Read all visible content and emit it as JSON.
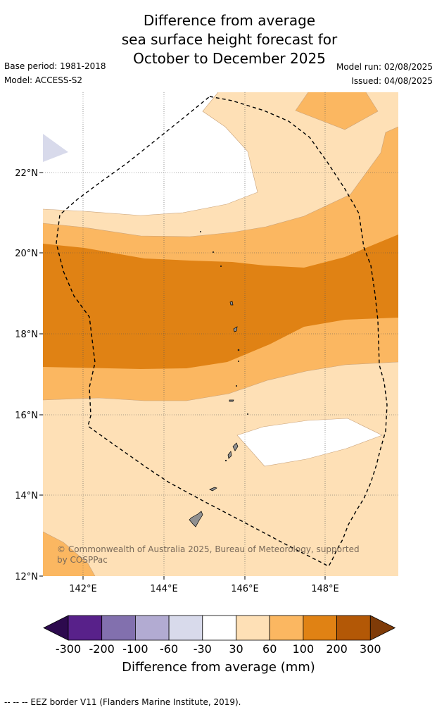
{
  "title_lines": [
    "Difference from average",
    "sea surface height forecast for",
    "October to December 2025"
  ],
  "base_period": "Base period: 1981-2018",
  "model": "Model: ACCESS-S2",
  "model_run": "Model run: 02/08/2025",
  "issued": "Issued: 04/08/2025",
  "lat_labels": [
    "22°N",
    "20°N",
    "18°N",
    "16°N",
    "14°N",
    "12°N"
  ],
  "lon_labels": [
    "142°E",
    "144°E",
    "146°E",
    "148°E"
  ],
  "copyright": [
    "© Commonwealth of Australia 2025, Bureau of Meteorology, supported",
    "by COSPPac"
  ],
  "colorbar": {
    "title": "Difference from average (mm)",
    "tick_labels": [
      "-300",
      "-200",
      "-100",
      "-60",
      "-30",
      "30",
      "60",
      "100",
      "200",
      "300"
    ],
    "colors": [
      "#2d0a4e",
      "#58218a",
      "#8270ae",
      "#b2abd2",
      "#d8daeb",
      "#ffffff",
      "#fee0b6",
      "#fbb761",
      "#e08214",
      "#b35806",
      "#7f3b08"
    ]
  },
  "eez_legend": "--  --  -- EEZ border V11 (Flanders Marine Institute, 2019)."
}
